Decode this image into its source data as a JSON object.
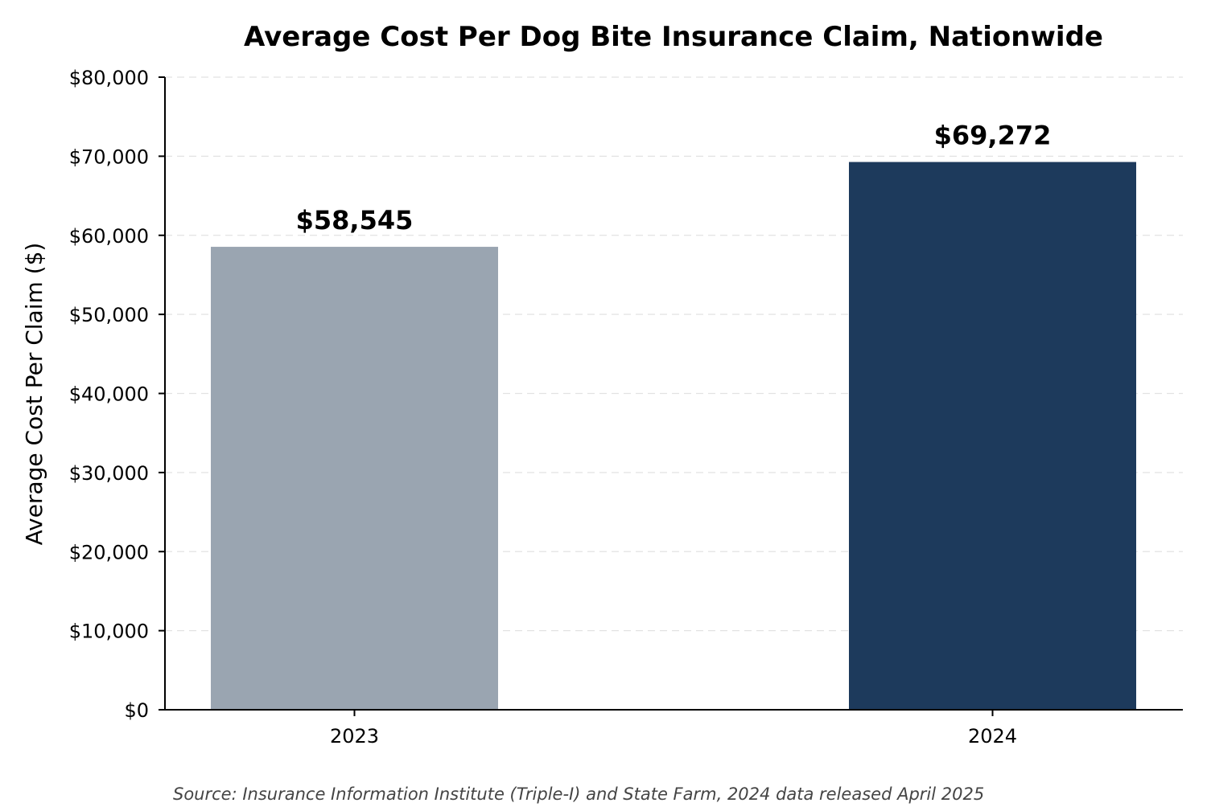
{
  "chart_data": {
    "type": "bar",
    "title": "Average Cost Per Dog Bite Insurance Claim, Nationwide",
    "xlabel": "",
    "ylabel": "Average Cost Per Claim ($)",
    "categories": [
      "2023",
      "2024"
    ],
    "values": [
      58545,
      69272
    ],
    "data_labels": [
      "$58,545",
      "$69,272"
    ],
    "bar_colors": [
      "#9aa5b1",
      "#1d3a5c"
    ],
    "ylim": [
      0,
      80000
    ],
    "yticks": [
      0,
      10000,
      20000,
      30000,
      40000,
      50000,
      60000,
      70000,
      80000
    ],
    "ytick_labels": [
      "$0",
      "$10,000",
      "$20,000",
      "$30,000",
      "$40,000",
      "$50,000",
      "$60,000",
      "$70,000",
      "$80,000"
    ],
    "grid": "y-dashed",
    "legend": "none"
  },
  "source_note": "Source: Insurance Information Institute (Triple-I) and State Farm, 2024 data released April 2025"
}
